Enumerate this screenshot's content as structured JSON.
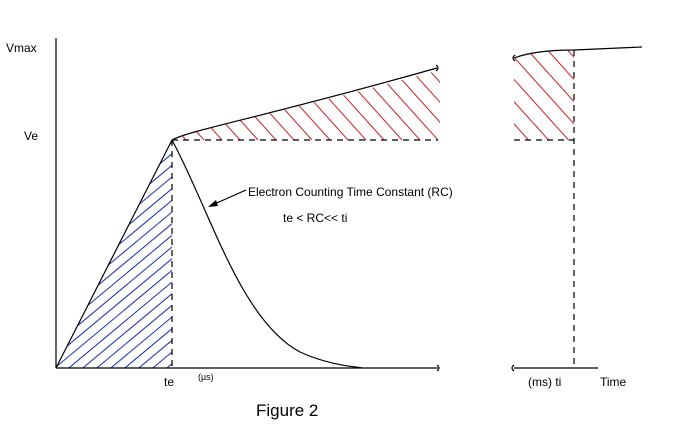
{
  "labels": {
    "vmax": "Vmax",
    "ve": "Ve",
    "annotation_line1": "Electron Counting Time  Constant (RC)",
    "annotation_line2": "te < RC<< ti",
    "te": "te",
    "us_unit": "(µs)",
    "ti": "(ms) ti",
    "time": "Time",
    "caption": "Figure 2"
  },
  "colors": {
    "axis": "#000000",
    "rise_hatch": "#1a2fb0",
    "plateau_hatch": "#cc1f1f",
    "background": "#ffffff"
  }
}
